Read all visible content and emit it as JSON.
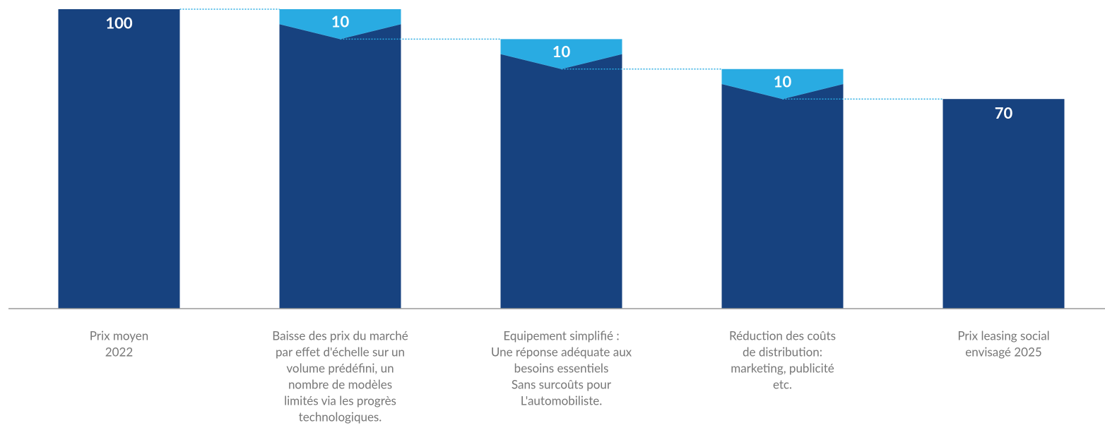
{
  "chart_data": {
    "type": "waterfall",
    "categories": [
      [
        "Prix moyen",
        "2022"
      ],
      [
        "Baisse des prix du marché",
        "par effet d'échelle sur un",
        "volume prédéfini, un",
        "nombre de modèles",
        "limités via les progrès",
        "technologiques."
      ],
      [
        "Equipement simplifié :",
        "Une réponse adéquate aux",
        "besoins essentiels",
        "Sans surcoûts pour",
        "L'automobiliste."
      ],
      [
        "Réduction des coûts",
        "de distribution:",
        "marketing, publicité",
        "etc."
      ],
      [
        "Prix leasing social",
        "envisagé 2025"
      ]
    ],
    "values": [
      100,
      10,
      10,
      10,
      70
    ],
    "measure": [
      "total",
      "decrease",
      "decrease",
      "decrease",
      "total"
    ],
    "color": "#17427f",
    "decrease_color": "#29abe2"
  }
}
